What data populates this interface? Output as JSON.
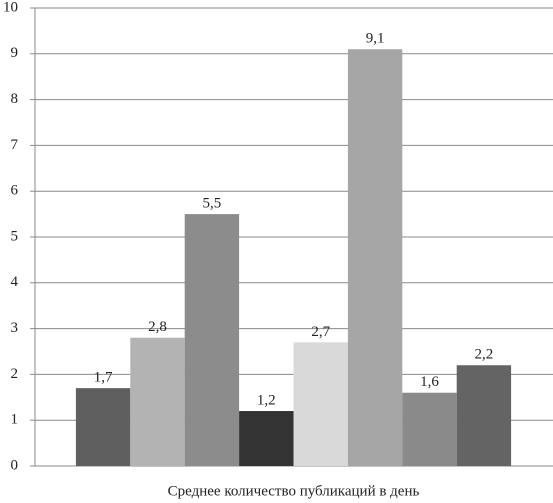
{
  "chart_data": {
    "type": "bar",
    "categories": [
      "Среднее количество публикаций в день"
    ],
    "series": [
      {
        "color": "#5f5f5f",
        "values": [
          1.7
        ],
        "value_labels": [
          "1,7"
        ]
      },
      {
        "color": "#b3b3b3",
        "values": [
          2.8
        ],
        "value_labels": [
          "2,8"
        ]
      },
      {
        "color": "#8c8c8c",
        "values": [
          5.5
        ],
        "value_labels": [
          "5,5"
        ]
      },
      {
        "color": "#333333",
        "values": [
          1.2
        ],
        "value_labels": [
          "1,2"
        ]
      },
      {
        "color": "#d9d9d9",
        "values": [
          2.7
        ],
        "value_labels": [
          "2,7"
        ]
      },
      {
        "color": "#a6a6a6",
        "values": [
          9.1
        ],
        "value_labels": [
          "9,1"
        ]
      },
      {
        "color": "#8a8a8a",
        "values": [
          1.6
        ],
        "value_labels": [
          "1,6"
        ]
      },
      {
        "color": "#646464",
        "values": [
          2.2
        ],
        "value_labels": [
          "2,2"
        ]
      }
    ],
    "ylim": [
      0,
      10
    ],
    "yticks": [
      0,
      1,
      2,
      3,
      4,
      5,
      6,
      7,
      8,
      9,
      10
    ],
    "grid": true
  }
}
